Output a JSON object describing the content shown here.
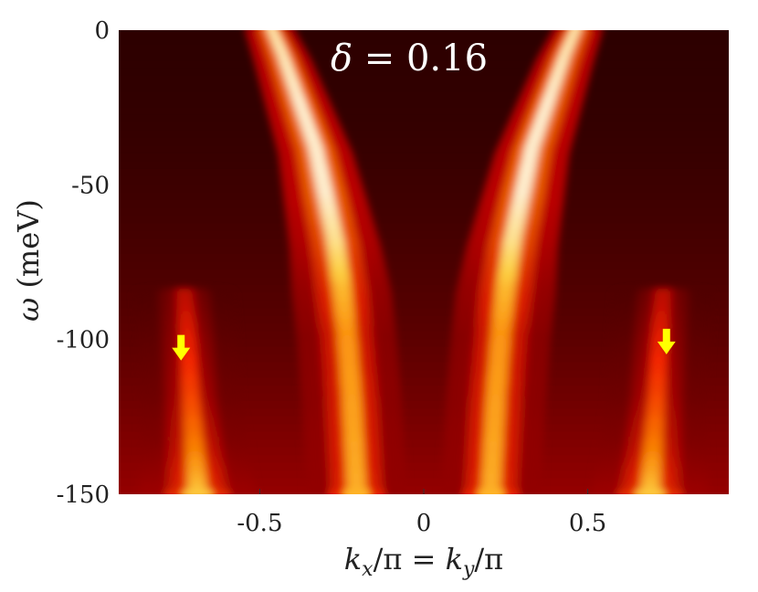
{
  "chart_data": {
    "type": "heatmap",
    "title": "δ = 0.16",
    "title_parts": {
      "symbol": "δ",
      "eq": " = ",
      "value": "0.16"
    },
    "xlabel": "k_x/π = k_y/π",
    "xlabel_parts": {
      "k": "k",
      "sub_x": "x",
      "slash1": "/π = ",
      "k2": "k",
      "sub_y": "y",
      "slash2": "/π"
    },
    "ylabel": "ω (meV)",
    "ylabel_parts": {
      "symbol": "ω",
      "rest": " (meV)"
    },
    "xlim": [
      -0.93,
      0.93
    ],
    "ylim": [
      -150,
      0
    ],
    "xticks": [
      -0.5,
      0,
      0.5
    ],
    "xtick_labels": [
      "-0.5",
      "0",
      "0.5"
    ],
    "yticks": [
      0,
      -50,
      -100,
      -150
    ],
    "ytick_labels": [
      "0",
      "-50",
      "-100",
      "-150"
    ],
    "colormap": "hot",
    "colormap_stops": [
      "#1a0000",
      "#5a0000",
      "#b00000",
      "#ff2a00",
      "#ff8c00",
      "#ffe14d",
      "#fffbe0"
    ],
    "bands": [
      {
        "name": "main-band-left",
        "points": [
          [
            -0.47,
            0
          ],
          [
            -0.43,
            -10
          ],
          [
            -0.38,
            -25
          ],
          [
            -0.33,
            -40
          ],
          [
            -0.3,
            -55
          ],
          [
            -0.27,
            -70
          ],
          [
            -0.25,
            -85
          ],
          [
            -0.235,
            -100
          ],
          [
            -0.22,
            -120
          ],
          [
            -0.205,
            -150
          ]
        ],
        "peak_intensity": [
          0.95,
          0.97,
          1.0,
          1.0,
          1.0,
          0.92,
          0.78,
          0.7,
          0.72,
          0.75
        ],
        "width": [
          0.03,
          0.035,
          0.04,
          0.045,
          0.05,
          0.055,
          0.06,
          0.06,
          0.06,
          0.06
        ]
      },
      {
        "name": "main-band-right",
        "points": [
          [
            0.47,
            0
          ],
          [
            0.43,
            -10
          ],
          [
            0.38,
            -25
          ],
          [
            0.33,
            -40
          ],
          [
            0.3,
            -55
          ],
          [
            0.27,
            -70
          ],
          [
            0.25,
            -85
          ],
          [
            0.235,
            -100
          ],
          [
            0.22,
            -120
          ],
          [
            0.205,
            -150
          ]
        ],
        "peak_intensity": [
          0.95,
          0.97,
          1.0,
          1.0,
          1.0,
          0.92,
          0.78,
          0.7,
          0.72,
          0.75
        ],
        "width": [
          0.03,
          0.035,
          0.04,
          0.045,
          0.05,
          0.055,
          0.06,
          0.06,
          0.06,
          0.06
        ]
      },
      {
        "name": "side-band-left",
        "points": [
          [
            -0.73,
            -85
          ],
          [
            -0.72,
            -100
          ],
          [
            -0.71,
            -120
          ],
          [
            -0.7,
            -135
          ],
          [
            -0.69,
            -150
          ]
        ],
        "peak_intensity": [
          0.35,
          0.45,
          0.55,
          0.65,
          0.8
        ],
        "width": [
          0.06,
          0.06,
          0.06,
          0.065,
          0.07
        ]
      },
      {
        "name": "side-band-right",
        "points": [
          [
            0.73,
            -85
          ],
          [
            0.72,
            -100
          ],
          [
            0.71,
            -120
          ],
          [
            0.7,
            -135
          ],
          [
            0.69,
            -150
          ]
        ],
        "peak_intensity": [
          0.35,
          0.45,
          0.55,
          0.65,
          0.8
        ],
        "width": [
          0.06,
          0.06,
          0.06,
          0.065,
          0.07
        ]
      }
    ],
    "background_intensity": {
      "top": 0.05,
      "bottom": 0.28,
      "center_bottom": 0.3
    },
    "annotations": [
      {
        "type": "arrow",
        "x": -0.74,
        "y": -105,
        "direction": "down",
        "color": "#ffff00"
      },
      {
        "type": "arrow",
        "x": 0.74,
        "y": -103,
        "direction": "down",
        "color": "#ffff00"
      }
    ]
  }
}
